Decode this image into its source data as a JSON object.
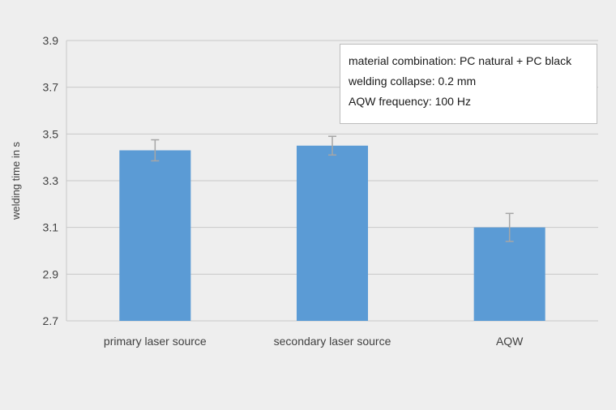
{
  "chart_data": {
    "type": "bar",
    "categories": [
      "primary laser source",
      "secondary laser source",
      "AQW"
    ],
    "values": [
      3.43,
      3.45,
      3.1
    ],
    "error": [
      0.045,
      0.04,
      0.06
    ],
    "ylabel": "welding time in s",
    "xlabel": "",
    "ylim": [
      2.7,
      3.9
    ],
    "yticks": [
      "2.7",
      "2.9",
      "3.1",
      "3.3",
      "3.5",
      "3.7",
      "3.9"
    ],
    "bar_color": "#5b9bd5",
    "errorbar_color": "#a6a6a6",
    "gridlines": true,
    "annotation": [
      "material combination: PC natural + PC black",
      "welding collapse: 0.2 mm",
      "AQW frequency: 100 Hz"
    ]
  }
}
